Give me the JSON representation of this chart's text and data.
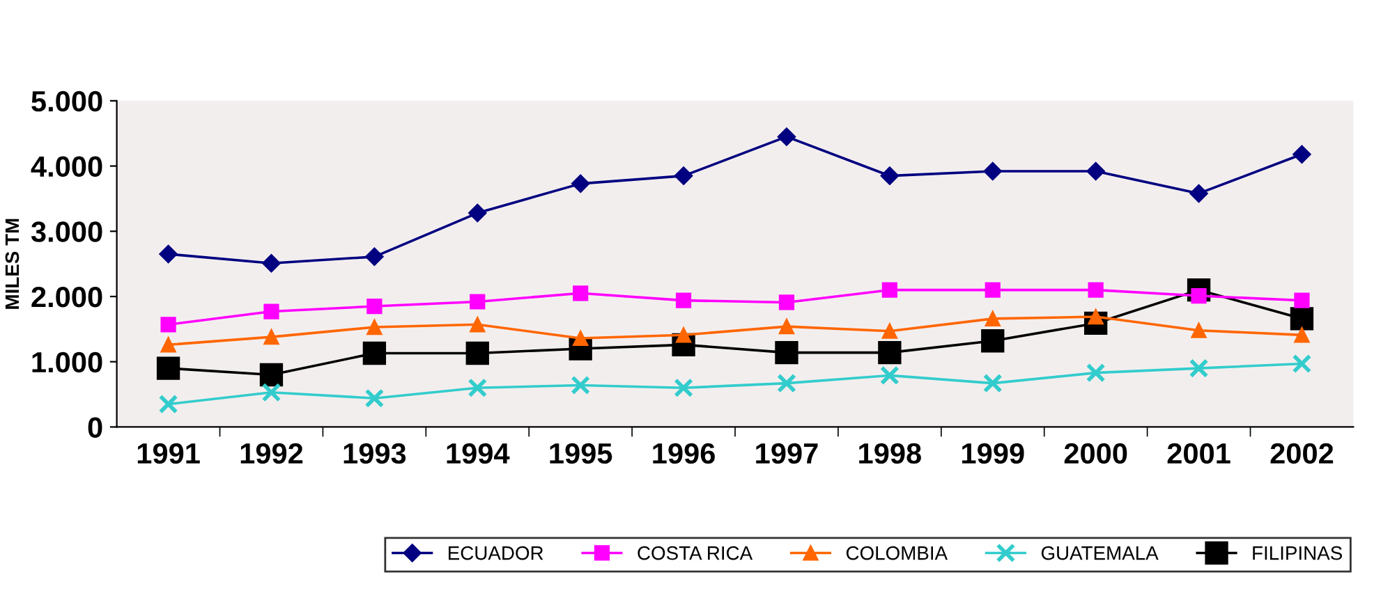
{
  "chart_data": {
    "type": "line",
    "ylabel": "MILES TM",
    "categories": [
      "1991",
      "1992",
      "1993",
      "1994",
      "1995",
      "1996",
      "1997",
      "1998",
      "1999",
      "2000",
      "2001",
      "2002"
    ],
    "series": [
      {
        "name": "ECUADOR",
        "color": "#000080",
        "marker": "diamond",
        "values": [
          2650,
          2510,
          2610,
          3280,
          3730,
          3850,
          4450,
          3850,
          3920,
          3920,
          3580,
          4180
        ]
      },
      {
        "name": "COSTA RICA",
        "color": "#ff00ff",
        "marker": "square",
        "values": [
          1570,
          1770,
          1850,
          1920,
          2050,
          1940,
          1910,
          2100,
          2100,
          2100,
          2010,
          1940
        ]
      },
      {
        "name": "COLOMBIA",
        "color": "#ff6600",
        "marker": "triangle",
        "values": [
          1260,
          1380,
          1530,
          1570,
          1360,
          1410,
          1540,
          1470,
          1660,
          1690,
          1480,
          1410
        ]
      },
      {
        "name": "GUATEMALA",
        "color": "#33cccc",
        "marker": "cross",
        "values": [
          350,
          530,
          440,
          600,
          640,
          600,
          670,
          790,
          670,
          830,
          900,
          970
        ]
      },
      {
        "name": "FILIPINAS",
        "color": "#000000",
        "marker": "square",
        "values": [
          900,
          800,
          1130,
          1130,
          1200,
          1260,
          1140,
          1140,
          1320,
          1590,
          2100,
          1660
        ]
      }
    ],
    "ylim": [
      0,
      5000
    ],
    "yticks": [
      {
        "value": 0,
        "label": "0"
      },
      {
        "value": 1000,
        "label": "1.000"
      },
      {
        "value": 2000,
        "label": "2.000"
      },
      {
        "value": 3000,
        "label": "3.000"
      },
      {
        "value": 4000,
        "label": "4.000"
      },
      {
        "value": 5000,
        "label": "5.000"
      }
    ],
    "grid": false,
    "legend": "bottom",
    "line_style": "solid"
  }
}
